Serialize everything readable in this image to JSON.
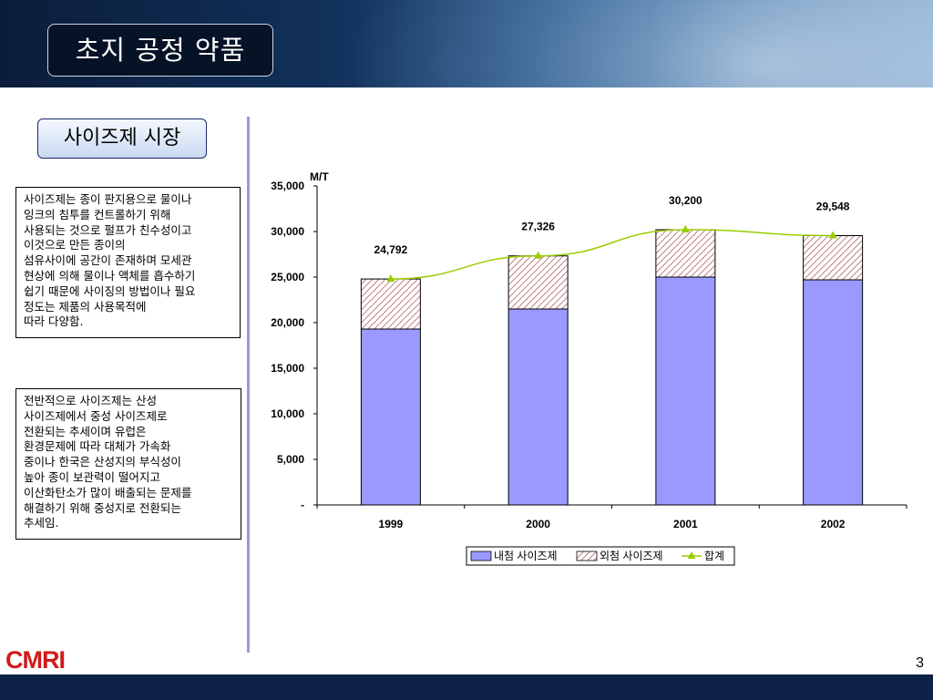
{
  "slide": {
    "title": "초지 공정 약품",
    "subtitle": "사이즈제 시장",
    "page_number": "3",
    "logo_text": "CMRI"
  },
  "textboxes": [
    " 사이즈제는 종이 판지용으로 물이나\n잉크의 침투를 컨트롤하기 위해\n사용되는 것으로 펄프가 친수성이고\n이것으로 만든 종이의\n섬유사이에 공간이 존재하며 모세관\n현상에 의해 물이나 액체를 흡수하기\n쉽기 때문에 사이징의 방법이나 필요\n정도는 제품의        사용목적에\n따라 다양함.",
    "전반적으로 사이즈제는 산성\n사이즈제에서 중성 사이즈제로\n전환되는 추세이며 유럽은\n환경문제에 따라 대체가 가속화\n중이나 한국은 산성지의 부식성이\n높아 종이 보관력이 떨어지고\n이산화탄소가 많이 배출되는 문제를\n해결하기 위해 중성지로 전환되는\n추세임."
  ],
  "colors": {
    "bar_internal": "#9999ff",
    "bar_external_hatch": "#c08080",
    "total_line": "#99cc00",
    "total_marker": "#99cc00",
    "divider": "#9b9ad6"
  },
  "chart_data": {
    "type": "bar",
    "stacked": true,
    "ylabel": "M/T",
    "ylim": [
      0,
      35000
    ],
    "yticks": [
      "-",
      "5,000",
      "10,000",
      "15,000",
      "20,000",
      "25,000",
      "30,000",
      "35,000"
    ],
    "categories": [
      "1999",
      "2000",
      "2001",
      "2002"
    ],
    "series": [
      {
        "name": "내첨 사이즈제",
        "type": "bar",
        "values": [
          19300,
          21500,
          25000,
          24700
        ]
      },
      {
        "name": "외첨 사이즈제",
        "type": "bar",
        "values": [
          5492,
          5826,
          5200,
          4848
        ]
      },
      {
        "name": "합계",
        "type": "line",
        "values": [
          24792,
          27326,
          30200,
          29548
        ]
      }
    ],
    "data_labels": [
      "24,792",
      "27,326",
      "30,200",
      "29,548"
    ],
    "legend_position": "bottom"
  }
}
